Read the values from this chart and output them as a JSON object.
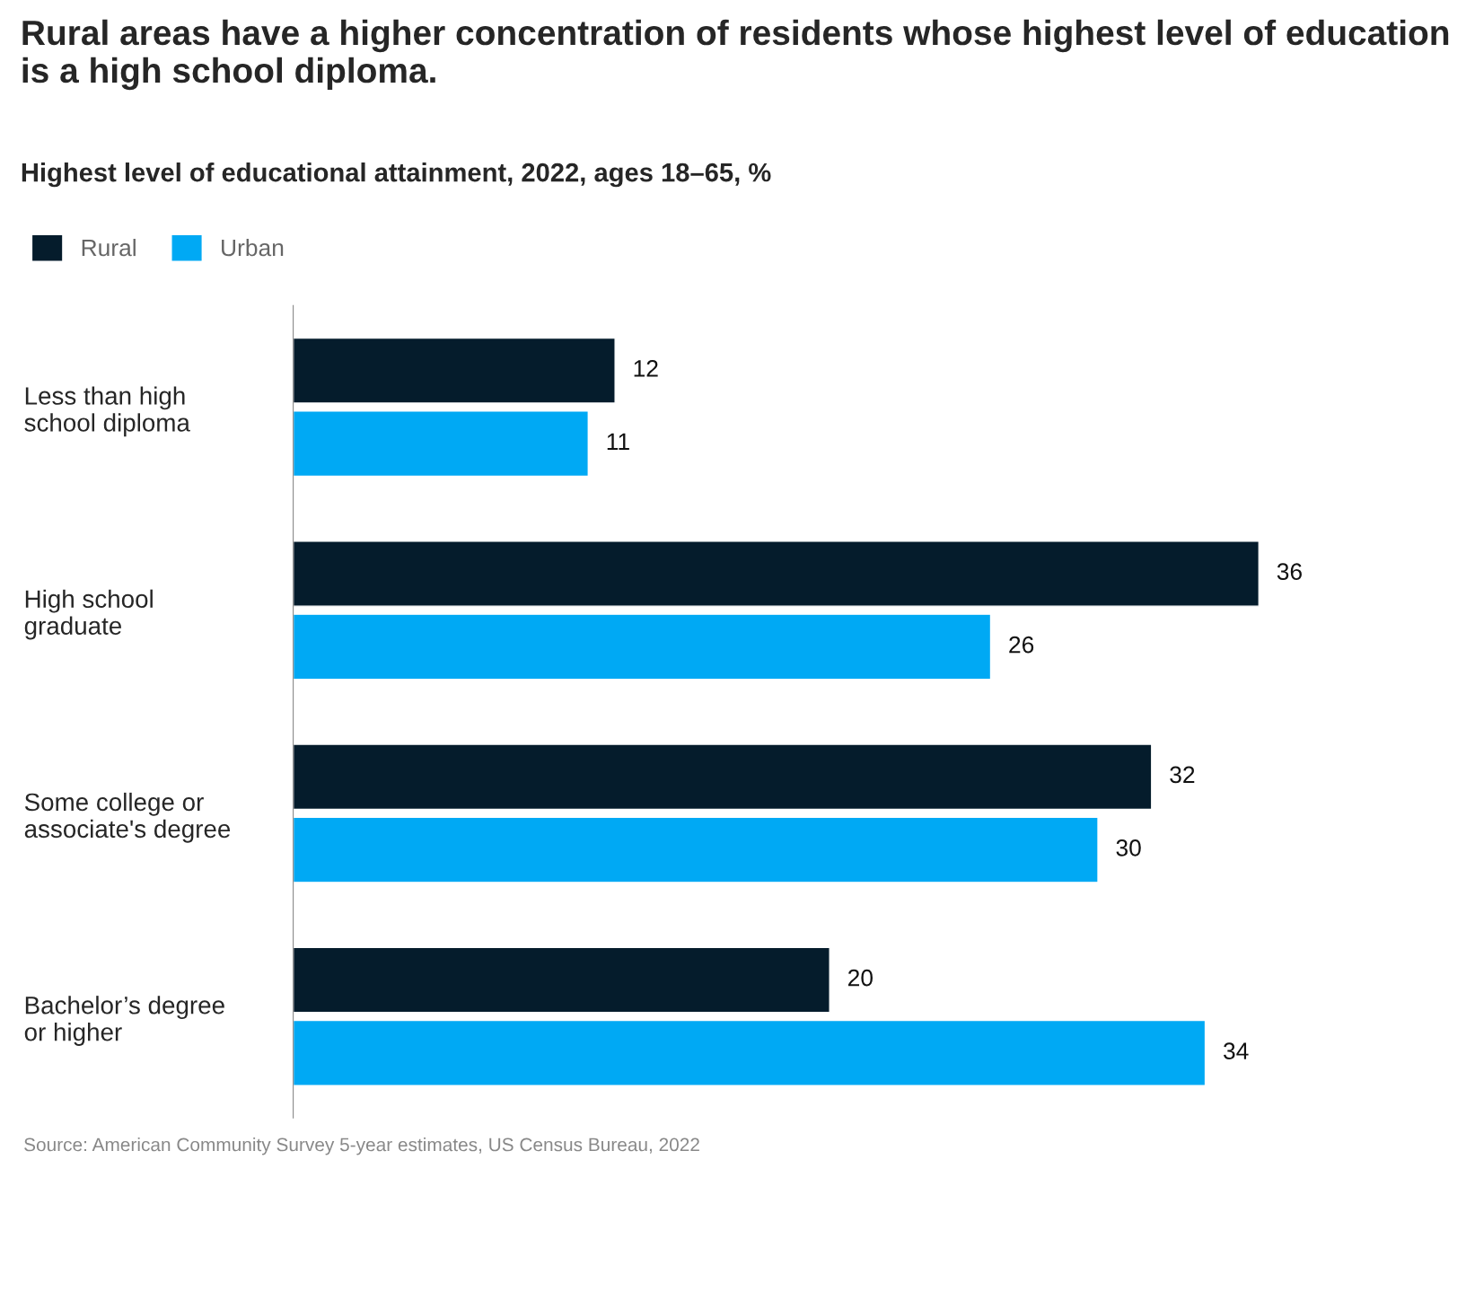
{
  "chart_data": {
    "type": "bar",
    "orientation": "horizontal",
    "title": "Rural areas have a higher concentration of residents whose highest level of education is a high school diploma.",
    "subtitle": "Highest level of educational attainment, 2022, ages 18–65, %",
    "categories": [
      "Less than high\nschool diploma",
      "High school\ngraduate",
      "Some college or\nassociate's degree",
      "Bachelor’s degree\nor higher"
    ],
    "series": [
      {
        "name": "Rural",
        "color": "#051c2c",
        "values": [
          12,
          36,
          32,
          20
        ]
      },
      {
        "name": "Urban",
        "color": "#00a9f4",
        "values": [
          11,
          26,
          30,
          34
        ]
      }
    ],
    "data_labels": true,
    "legend": "top left",
    "tick_labels": "y",
    "grid": false,
    "annotations": [
      "Source: American Community Survey 5-year estimates, US Census Bureau, 2022"
    ]
  }
}
